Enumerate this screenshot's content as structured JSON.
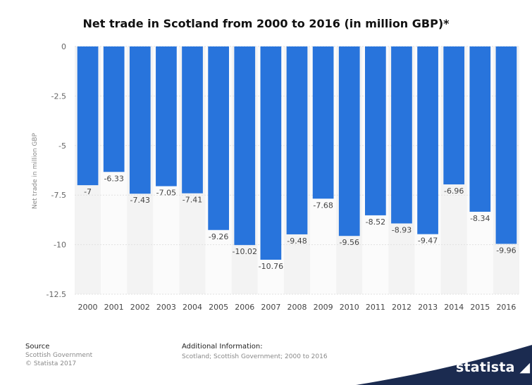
{
  "chart_data": {
    "type": "bar",
    "title": "Net trade in Scotland from 2000 to 2016 (in million GBP)*",
    "ylabel": "Net trade in million GBP",
    "xlabel": "",
    "categories": [
      "2000",
      "2001",
      "2002",
      "2003",
      "2004",
      "2005",
      "2006",
      "2007",
      "2008",
      "2009",
      "2010",
      "2011",
      "2012",
      "2013",
      "2014",
      "2015",
      "2016"
    ],
    "values": [
      -7,
      -6.33,
      -7.43,
      -7.05,
      -7.41,
      -9.26,
      -10.02,
      -10.76,
      -9.48,
      -7.68,
      -9.56,
      -8.52,
      -8.93,
      -9.47,
      -6.96,
      -8.34,
      -9.96
    ],
    "value_labels": [
      "-7",
      "-6.33",
      "-7.43",
      "-7.05",
      "-7.41",
      "-9.26",
      "-10.02",
      "-10.76",
      "-9.48",
      "-7.68",
      "-9.56",
      "-8.52",
      "-8.93",
      "-9.47",
      "-6.96",
      "-8.34",
      "-9.96"
    ],
    "ylim": [
      -12.5,
      0
    ],
    "yticks": [
      0,
      -2.5,
      -5,
      -7.5,
      -10,
      -12.5
    ],
    "ytick_labels": [
      "0",
      "-2.5",
      "-5",
      "-7.5",
      "-10",
      "-12.5"
    ],
    "grid": true,
    "legend": "none",
    "bar_color": "#2874dc"
  },
  "footer": {
    "source_heading": "Source",
    "source_lines": [
      "Scottish Government",
      "© Statista 2017"
    ],
    "info_heading": "Additional Information:",
    "info_text": "Scotland; Scottish Government; 2000 to 2016"
  },
  "brand": {
    "logo_text": "statista",
    "wave_color": "#1b2b50"
  }
}
